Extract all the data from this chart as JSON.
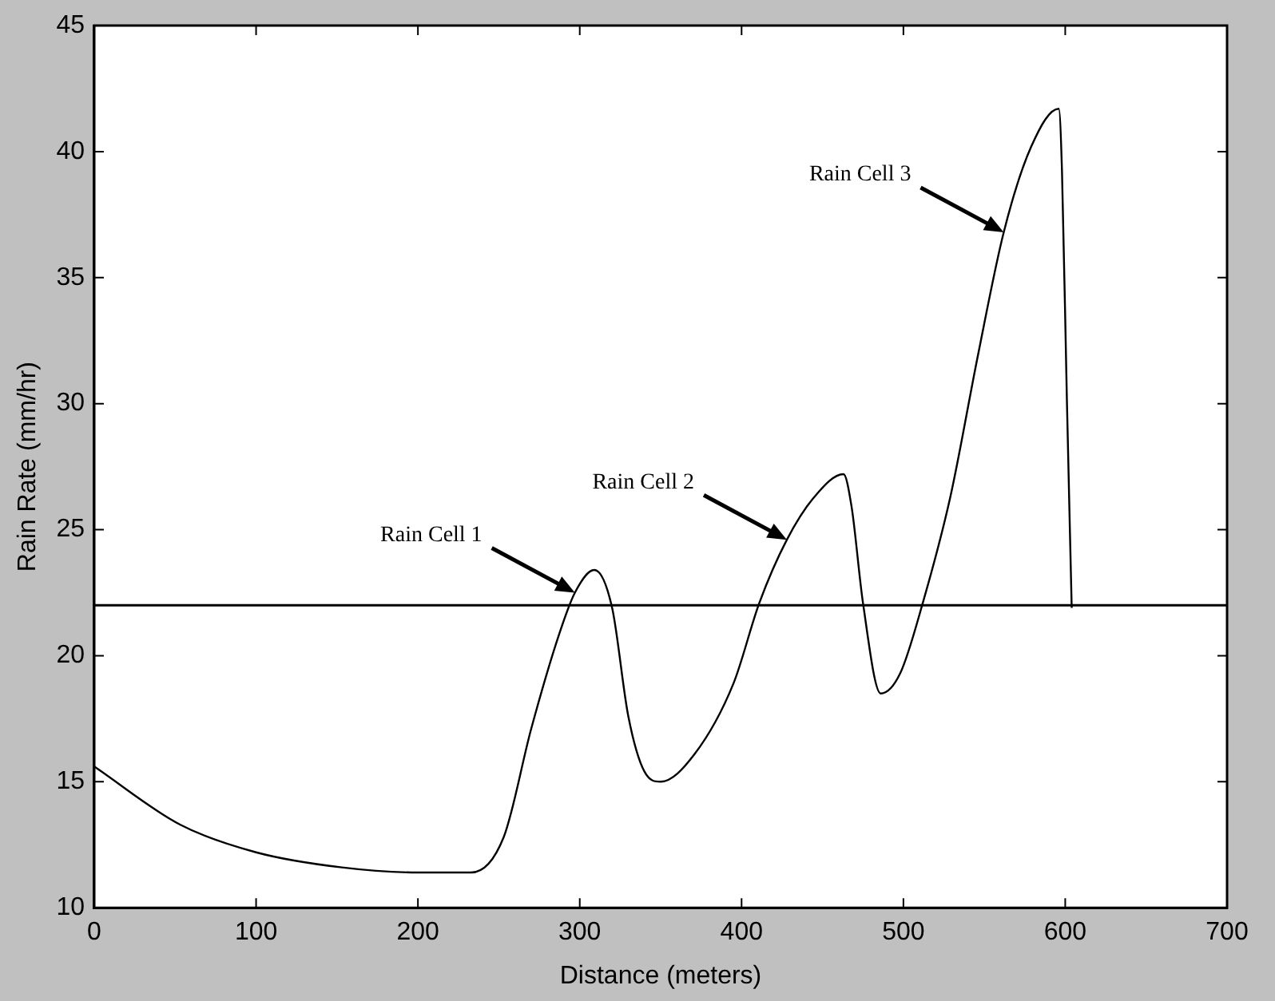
{
  "chart_data": {
    "type": "line",
    "xlabel": "Distance (meters)",
    "ylabel": "Rain Rate (mm/hr)",
    "x": [
      0,
      53,
      100,
      153,
      200,
      233,
      253,
      270,
      287,
      297,
      309,
      320,
      330,
      340,
      350,
      371,
      395,
      411,
      428,
      445,
      463,
      468,
      475,
      486,
      498,
      512,
      529,
      546,
      562,
      579,
      596,
      598,
      601,
      604
    ],
    "series": [
      {
        "color": "#000000",
        "values": [
          15.6,
          13.3,
          12.2,
          11.6,
          11.4,
          11.4,
          12.8,
          17.1,
          20.8,
          22.5,
          23.4,
          21.9,
          17.6,
          15.4,
          15.0,
          16.1,
          18.9,
          22.1,
          24.6,
          26.3,
          27.2,
          25.9,
          22.1,
          18.5,
          19.3,
          22.1,
          26.3,
          31.9,
          36.8,
          40.2,
          41.7,
          39.2,
          30.2,
          21.9
        ]
      }
    ],
    "xlim": [
      0,
      700
    ],
    "xticks": [
      0,
      100,
      200,
      300,
      400,
      500,
      600,
      700
    ],
    "ylim": [
      10,
      45
    ],
    "yticks": [
      10,
      15,
      20,
      25,
      30,
      35,
      40,
      45
    ],
    "ref_lines": [
      {
        "axis": "y",
        "value": 22,
        "color": "#000000"
      }
    ],
    "annotations": [
      {
        "text": "Rain Cell 1",
        "x": 297,
        "y": 22.5
      },
      {
        "text": "Rain Cell 2",
        "x": 428,
        "y": 24.6
      },
      {
        "text": "Rain Cell 3",
        "x": 562,
        "y": 36.8
      }
    ],
    "grid": false,
    "legend": false,
    "marker": "none",
    "line_style": "solid"
  }
}
